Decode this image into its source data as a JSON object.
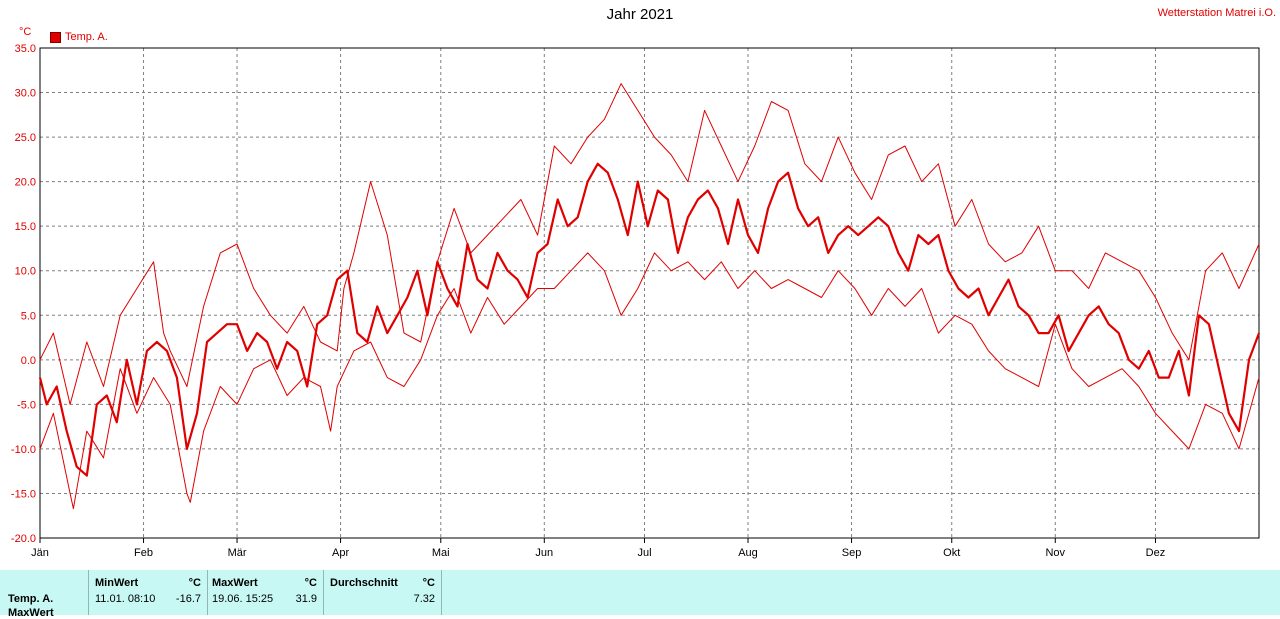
{
  "station": "Wetterstation Matrei i.O.",
  "stats": {
    "series_name": "Temp. A.",
    "next_row_label": "MaxWert",
    "min_header": "MinWert",
    "min_unit": "°C",
    "min_date": "11.01.  08:10",
    "min_value": "-16.7",
    "max_header": "MaxWert",
    "max_unit": "°C",
    "max_date": "19.06.  15:25",
    "max_value": "31.9",
    "avg_header": "Durchschnitt",
    "avg_unit": "°C",
    "avg_value": "7.32"
  },
  "colors": {
    "series": "#e00000",
    "grid": "#808080",
    "stats_background": "#c8f8f4"
  },
  "chart_data": {
    "type": "line",
    "title": "Jahr 2021",
    "ylabel": "°C",
    "ylim": [
      -20,
      35
    ],
    "y_ticks": [
      "35.0",
      "30.0",
      "25.0",
      "20.0",
      "15.0",
      "10.0",
      "5.0",
      "0.0",
      "-5.0",
      "-10.0",
      "-15.0",
      "-20.0"
    ],
    "xlim": [
      1,
      366
    ],
    "x_tick_labels": [
      "Jän",
      "Feb",
      "Mär",
      "Apr",
      "Mai",
      "Jun",
      "Jul",
      "Aug",
      "Sep",
      "Okt",
      "Nov",
      "Dez"
    ],
    "x_tick_days": [
      1,
      32,
      60,
      91,
      121,
      152,
      182,
      213,
      244,
      274,
      305,
      335
    ],
    "grid": true,
    "legend": "top-left",
    "series": [
      {
        "name": "Temp. A.",
        "role": "max",
        "days": [
          1,
          5,
          10,
          15,
          20,
          25,
          30,
          35,
          38,
          40,
          45,
          50,
          55,
          60,
          65,
          70,
          75,
          80,
          85,
          90,
          92,
          95,
          100,
          105,
          110,
          115,
          120,
          125,
          130,
          135,
          140,
          145,
          150,
          155,
          160,
          165,
          170,
          175,
          180,
          185,
          190,
          195,
          200,
          205,
          210,
          215,
          220,
          225,
          230,
          235,
          240,
          245,
          250,
          255,
          260,
          265,
          270,
          275,
          280,
          285,
          290,
          295,
          300,
          305,
          310,
          315,
          320,
          325,
          330,
          335,
          340,
          345,
          350,
          355,
          360,
          366
        ],
        "values": [
          0,
          3,
          -5,
          2,
          -3,
          5,
          8,
          11,
          3,
          1,
          -3,
          6,
          12,
          13,
          8,
          5,
          3,
          6,
          2,
          1,
          8,
          12,
          20,
          14,
          3,
          2,
          11,
          17,
          12,
          14,
          16,
          18,
          14,
          24,
          22,
          25,
          27,
          31,
          28,
          25,
          23,
          20,
          28,
          24,
          20,
          24,
          29,
          28,
          22,
          20,
          25,
          21,
          18,
          23,
          24,
          20,
          22,
          15,
          18,
          13,
          11,
          12,
          15,
          10,
          10,
          8,
          12,
          11,
          10,
          7,
          3,
          0,
          10,
          12,
          8,
          13
        ]
      },
      {
        "name": "",
        "role": "average",
        "days": [
          1,
          3,
          6,
          9,
          12,
          15,
          18,
          21,
          24,
          27,
          30,
          33,
          36,
          39,
          42,
          45,
          48,
          51,
          54,
          57,
          60,
          63,
          66,
          69,
          72,
          75,
          78,
          81,
          84,
          87,
          90,
          93,
          96,
          99,
          102,
          105,
          108,
          111,
          114,
          117,
          120,
          123,
          126,
          129,
          132,
          135,
          138,
          141,
          144,
          147,
          150,
          153,
          156,
          159,
          162,
          165,
          168,
          171,
          174,
          177,
          180,
          183,
          186,
          189,
          192,
          195,
          198,
          201,
          204,
          207,
          210,
          213,
          216,
          219,
          222,
          225,
          228,
          231,
          234,
          237,
          240,
          243,
          246,
          249,
          252,
          255,
          258,
          261,
          264,
          267,
          270,
          273,
          276,
          279,
          282,
          285,
          288,
          291,
          294,
          297,
          300,
          303,
          306,
          309,
          312,
          315,
          318,
          321,
          324,
          327,
          330,
          333,
          336,
          339,
          342,
          345,
          348,
          351,
          354,
          357,
          360,
          363,
          366
        ],
        "values": [
          -2,
          -5,
          -3,
          -8,
          -12,
          -13,
          -5,
          -4,
          -7,
          0,
          -5,
          1,
          2,
          1,
          -2,
          -10,
          -6,
          2,
          3,
          4,
          4,
          1,
          3,
          2,
          -1,
          2,
          1,
          -3,
          4,
          5,
          9,
          10,
          3,
          2,
          6,
          3,
          5,
          7,
          10,
          5,
          11,
          8,
          6,
          13,
          9,
          8,
          12,
          10,
          9,
          7,
          12,
          13,
          18,
          15,
          16,
          20,
          22,
          21,
          18,
          14,
          20,
          15,
          19,
          18,
          12,
          16,
          18,
          19,
          17,
          13,
          18,
          14,
          12,
          17,
          20,
          21,
          17,
          15,
          16,
          12,
          14,
          15,
          14,
          15,
          16,
          15,
          12,
          10,
          14,
          13,
          14,
          10,
          8,
          7,
          8,
          5,
          7,
          9,
          6,
          5,
          3,
          3,
          5,
          1,
          3,
          5,
          6,
          4,
          3,
          0,
          -1,
          1,
          -2,
          -2,
          1,
          -4,
          5,
          4,
          -1,
          -6,
          -8,
          0,
          3
        ]
      },
      {
        "name": "",
        "role": "min",
        "days": [
          1,
          5,
          10,
          11,
          15,
          20,
          25,
          30,
          35,
          40,
          45,
          46,
          50,
          55,
          60,
          65,
          70,
          75,
          80,
          85,
          88,
          90,
          95,
          100,
          105,
          110,
          115,
          120,
          125,
          130,
          135,
          140,
          145,
          150,
          155,
          160,
          165,
          170,
          175,
          180,
          185,
          190,
          195,
          200,
          205,
          210,
          215,
          220,
          225,
          230,
          235,
          240,
          245,
          250,
          255,
          260,
          265,
          270,
          275,
          280,
          285,
          290,
          295,
          300,
          305,
          310,
          315,
          320,
          325,
          330,
          335,
          340,
          345,
          350,
          355,
          360,
          366
        ],
        "values": [
          -10,
          -6,
          -15,
          -16.7,
          -8,
          -11,
          -1,
          -6,
          -2,
          -5,
          -15,
          -16,
          -8,
          -3,
          -5,
          -1,
          0,
          -4,
          -2,
          -3,
          -8,
          -3,
          1,
          2,
          -2,
          -3,
          0,
          5,
          8,
          3,
          7,
          4,
          6,
          8,
          8,
          10,
          12,
          10,
          5,
          8,
          12,
          10,
          11,
          9,
          11,
          8,
          10,
          8,
          9,
          8,
          7,
          10,
          8,
          5,
          8,
          6,
          8,
          3,
          5,
          4,
          1,
          -1,
          -2,
          -3,
          4,
          -1,
          -3,
          -2,
          -1,
          -3,
          -6,
          -8,
          -10,
          -5,
          -6,
          -10,
          -2
        ]
      }
    ]
  }
}
